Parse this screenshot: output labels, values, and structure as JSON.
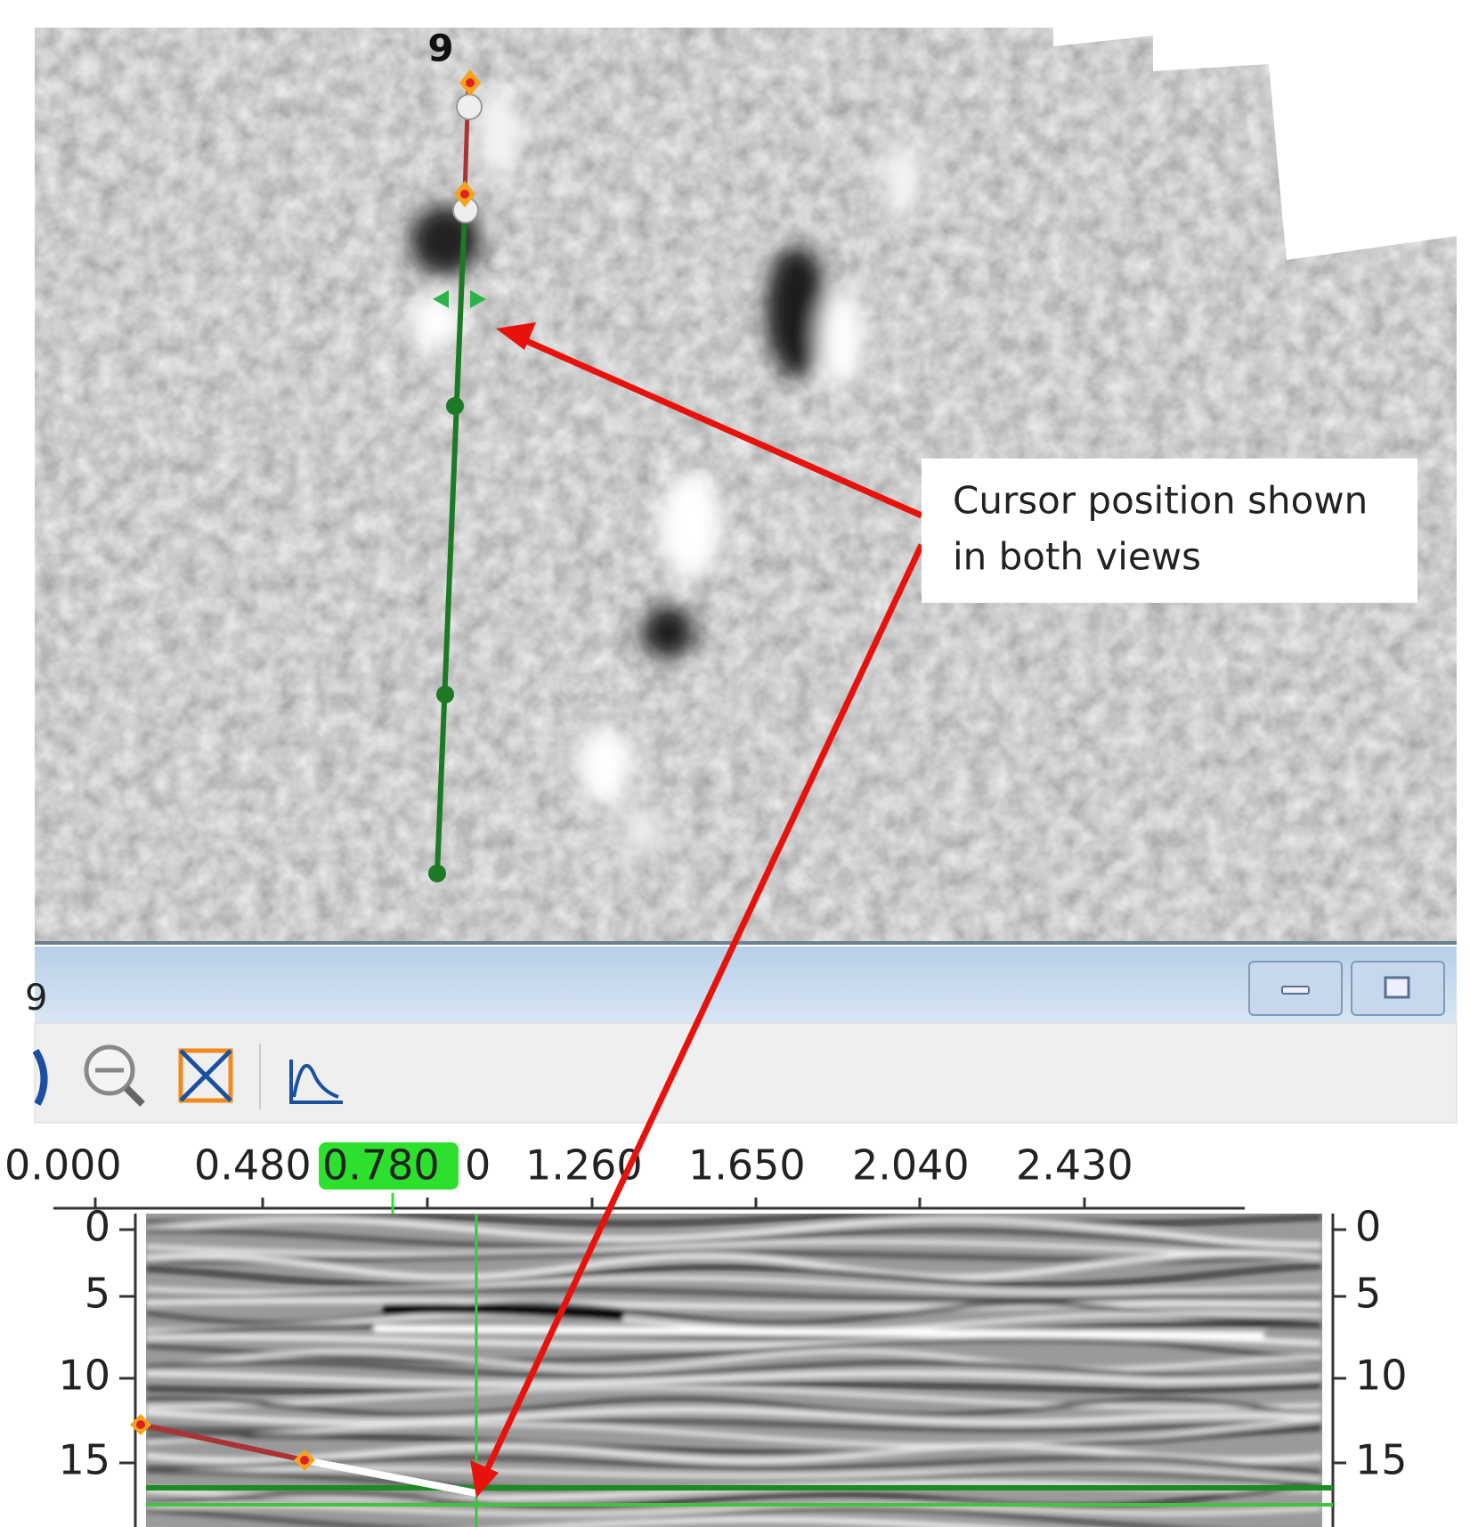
{
  "top_view": {
    "line_label": "9"
  },
  "callout": {
    "lines": [
      "Cursor position shown",
      "in both views"
    ]
  },
  "profile_window": {
    "title": "9",
    "distance_labels": [
      "0.000",
      "0.480",
      "0.780",
      "0",
      "1.260",
      "1.650",
      "2.040",
      "2.430"
    ],
    "depth_labels_left": [
      "0",
      "5",
      "10",
      "15"
    ],
    "depth_labels_right": [
      "0",
      "5",
      "10",
      "15"
    ]
  }
}
